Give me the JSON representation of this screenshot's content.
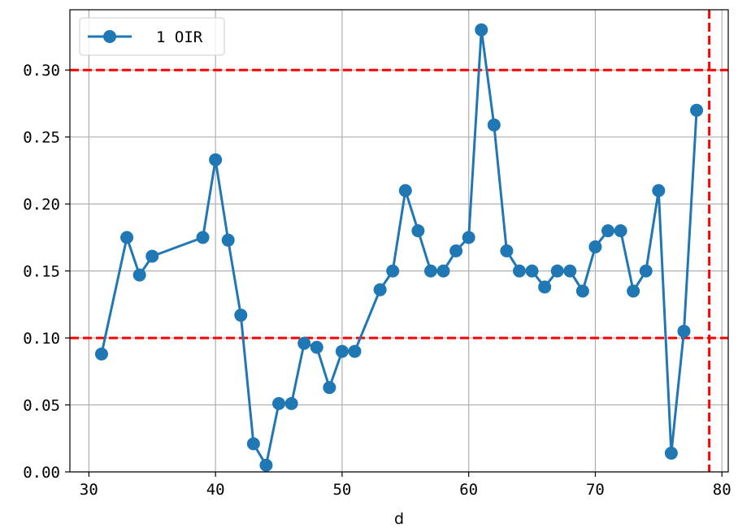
{
  "chart_data": {
    "type": "line",
    "title": "",
    "xlabel": "d",
    "ylabel": "",
    "xlim": [
      28.5,
      80.5
    ],
    "ylim": [
      0.0,
      0.345
    ],
    "grid": true,
    "legend_position": "top-left",
    "x_ticks": [
      "30",
      "40",
      "50",
      "60",
      "70",
      "80"
    ],
    "y_ticks": [
      "0.00",
      "0.05",
      "0.10",
      "0.15",
      "0.20",
      "0.25",
      "0.30"
    ],
    "series": [
      {
        "name": "1 OIR",
        "color": "#1f77b4",
        "marker": "circle",
        "x": [
          31,
          33,
          34,
          35,
          39,
          40,
          41,
          42,
          43,
          44,
          45,
          46,
          47,
          48,
          49,
          50,
          51,
          53,
          54,
          55,
          56,
          57,
          58,
          59,
          60,
          61,
          62,
          63,
          64,
          65,
          66,
          67,
          68,
          69,
          70,
          71,
          72,
          73,
          74,
          75,
          76,
          77,
          78
        ],
        "y": [
          0.088,
          0.175,
          0.147,
          0.161,
          0.175,
          0.233,
          0.173,
          0.117,
          0.021,
          0.005,
          0.051,
          0.051,
          0.096,
          0.093,
          0.063,
          0.09,
          0.09,
          0.136,
          0.15,
          0.21,
          0.18,
          0.15,
          0.15,
          0.165,
          0.175,
          0.33,
          0.259,
          0.165,
          0.15,
          0.15,
          0.138,
          0.15,
          0.15,
          0.135,
          0.168,
          0.18,
          0.18,
          0.135,
          0.15,
          0.21,
          0.014,
          0.105,
          0.27
        ]
      }
    ],
    "reference_lines": [
      {
        "orientation": "horizontal",
        "value": 0.3,
        "color": "#ff0000",
        "style": "dashed"
      },
      {
        "orientation": "horizontal",
        "value": 0.1,
        "color": "#ff0000",
        "style": "dashed"
      },
      {
        "orientation": "vertical",
        "value": 79,
        "color": "#ff0000",
        "style": "dashed"
      }
    ]
  }
}
